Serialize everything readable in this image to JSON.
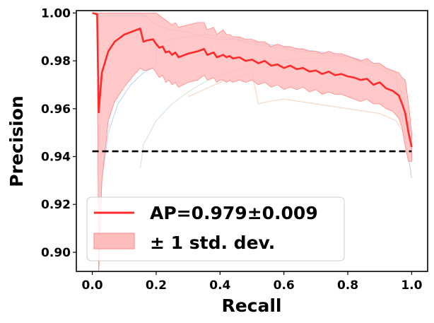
{
  "chart_data": {
    "type": "line",
    "xlabel": "Recall",
    "ylabel": "Precision",
    "xlim": [
      -0.05,
      1.05
    ],
    "ylim": [
      0.892,
      1.001
    ],
    "xticks": [
      0.0,
      0.2,
      0.4,
      0.6,
      0.8,
      1.0
    ],
    "xtick_labels": [
      "0.0",
      "0.2",
      "0.4",
      "0.6",
      "0.8",
      "1.0"
    ],
    "yticks": [
      0.9,
      0.92,
      0.94,
      0.96,
      0.98,
      1.0
    ],
    "ytick_labels": [
      "0.90",
      "0.92",
      "0.94",
      "0.96",
      "0.98",
      "1.00"
    ],
    "grid": false,
    "legend_position": "lower-left",
    "mean_curve": {
      "name": "AP=0.979±0.009",
      "color": "#ff2a2a",
      "x": [
        0.0,
        0.015,
        0.02,
        0.03,
        0.05,
        0.07,
        0.1,
        0.13,
        0.15,
        0.16,
        0.17,
        0.19,
        0.2,
        0.21,
        0.22,
        0.23,
        0.24,
        0.25,
        0.26,
        0.27,
        0.3,
        0.33,
        0.35,
        0.36,
        0.38,
        0.39,
        0.4,
        0.41,
        0.42,
        0.43,
        0.44,
        0.46,
        0.48,
        0.5,
        0.52,
        0.54,
        0.56,
        0.58,
        0.6,
        0.62,
        0.64,
        0.66,
        0.68,
        0.7,
        0.72,
        0.74,
        0.76,
        0.78,
        0.8,
        0.82,
        0.84,
        0.86,
        0.88,
        0.9,
        0.92,
        0.94,
        0.96,
        0.97,
        0.98,
        0.99,
        1.0
      ],
      "y": [
        1.0,
        0.9995,
        0.9585,
        0.975,
        0.984,
        0.988,
        0.991,
        0.9925,
        0.9935,
        0.988,
        0.9885,
        0.989,
        0.987,
        0.9855,
        0.986,
        0.9835,
        0.984,
        0.9825,
        0.9835,
        0.9815,
        0.983,
        0.984,
        0.985,
        0.9825,
        0.9835,
        0.9815,
        0.982,
        0.9825,
        0.9815,
        0.982,
        0.981,
        0.9815,
        0.98,
        0.9805,
        0.979,
        0.98,
        0.978,
        0.9785,
        0.977,
        0.978,
        0.9765,
        0.977,
        0.9755,
        0.976,
        0.9745,
        0.9755,
        0.974,
        0.9745,
        0.9735,
        0.973,
        0.972,
        0.9725,
        0.97,
        0.971,
        0.9685,
        0.9675,
        0.9655,
        0.962,
        0.958,
        0.95,
        0.944
      ]
    },
    "std_band": {
      "name": "± 1 std. dev.",
      "color": "#ffbcbc",
      "edge_color": "#ff8888",
      "x": [
        0.0,
        0.015,
        0.02,
        0.03,
        0.05,
        0.07,
        0.1,
        0.13,
        0.15,
        0.16,
        0.17,
        0.19,
        0.2,
        0.21,
        0.22,
        0.23,
        0.24,
        0.25,
        0.26,
        0.27,
        0.3,
        0.33,
        0.35,
        0.36,
        0.38,
        0.39,
        0.4,
        0.41,
        0.42,
        0.43,
        0.44,
        0.46,
        0.48,
        0.5,
        0.52,
        0.54,
        0.56,
        0.58,
        0.6,
        0.62,
        0.64,
        0.66,
        0.68,
        0.7,
        0.72,
        0.74,
        0.76,
        0.78,
        0.8,
        0.82,
        0.84,
        0.86,
        0.88,
        0.9,
        0.92,
        0.94,
        0.96,
        0.97,
        0.98,
        0.99,
        1.0
      ],
      "upper": [
        1.0,
        1.0,
        1.0,
        1.0,
        1.0,
        1.0,
        1.0,
        1.0,
        1.0,
        1.0,
        1.0,
        1.0,
        1.0,
        0.999,
        0.998,
        0.997,
        0.996,
        0.995,
        0.996,
        0.994,
        0.995,
        0.996,
        0.996,
        0.993,
        0.994,
        0.991,
        0.992,
        0.993,
        0.991,
        0.991,
        0.99,
        0.99,
        0.989,
        0.989,
        0.988,
        0.988,
        0.986,
        0.987,
        0.986,
        0.986,
        0.985,
        0.985,
        0.984,
        0.984,
        0.983,
        0.984,
        0.983,
        0.983,
        0.982,
        0.981,
        0.98,
        0.981,
        0.979,
        0.979,
        0.977,
        0.976,
        0.975,
        0.973,
        0.972,
        0.962,
        0.95
      ],
      "lower": [
        1.0,
        0.999,
        0.89,
        0.93,
        0.955,
        0.963,
        0.969,
        0.974,
        0.977,
        0.976,
        0.976,
        0.977,
        0.975,
        0.973,
        0.974,
        0.971,
        0.972,
        0.97,
        0.971,
        0.969,
        0.971,
        0.972,
        0.974,
        0.972,
        0.973,
        0.971,
        0.972,
        0.972,
        0.971,
        0.972,
        0.971,
        0.972,
        0.971,
        0.972,
        0.97,
        0.971,
        0.969,
        0.97,
        0.968,
        0.969,
        0.968,
        0.969,
        0.967,
        0.968,
        0.966,
        0.967,
        0.966,
        0.966,
        0.965,
        0.964,
        0.963,
        0.964,
        0.962,
        0.962,
        0.96,
        0.959,
        0.956,
        0.952,
        0.944,
        0.938,
        0.938
      ]
    },
    "baseline": {
      "y": 0.9422,
      "color": "#000000",
      "style": "dashed"
    },
    "faint_curves": [
      {
        "color": "#a8c8e8",
        "x": [
          0.02,
          0.03,
          0.05,
          0.08,
          0.12,
          0.16,
          0.2,
          0.2,
          0.25,
          0.3,
          0.35,
          0.4,
          0.45,
          0.5,
          0.55,
          0.6,
          0.65,
          0.7,
          0.75,
          0.8,
          0.85,
          0.9,
          0.95,
          0.99,
          1.0
        ],
        "y": [
          0.9,
          0.93,
          0.95,
          0.962,
          0.97,
          0.975,
          0.978,
          0.987,
          0.989,
          0.99,
          0.991,
          0.99,
          0.989,
          0.988,
          0.987,
          0.986,
          0.985,
          0.984,
          0.983,
          0.982,
          0.979,
          0.977,
          0.973,
          0.94,
          0.931
        ]
      },
      {
        "color": "#c9a8e0",
        "x": [
          0.05,
          0.1,
          0.15,
          0.2,
          0.25,
          0.3,
          0.35,
          0.4,
          0.45,
          0.5,
          0.55,
          0.6,
          0.65,
          0.7,
          0.75,
          0.8,
          0.85,
          0.9,
          0.95,
          1.0
        ],
        "y": [
          1.0,
          1.0,
          1.0,
          0.995,
          0.993,
          0.992,
          0.99,
          0.989,
          0.989,
          0.987,
          0.986,
          0.985,
          0.984,
          0.983,
          0.982,
          0.982,
          0.98,
          0.978,
          0.975,
          0.95
        ]
      },
      {
        "color": "#f4c8a8",
        "x": [
          0.3,
          0.35,
          0.4,
          0.45,
          0.5,
          0.52,
          0.55,
          0.6,
          0.65,
          0.7,
          0.75,
          0.8,
          0.85,
          0.9,
          0.95,
          1.0
        ],
        "y": [
          0.965,
          0.968,
          0.971,
          0.973,
          0.975,
          0.962,
          0.963,
          0.964,
          0.963,
          0.962,
          0.961,
          0.96,
          0.959,
          0.958,
          0.955,
          0.945
        ]
      },
      {
        "color": "#bfe0c4",
        "x": [
          0.15,
          0.16,
          0.2,
          0.25,
          0.3,
          0.35,
          0.4,
          0.45,
          0.5,
          0.55,
          0.6,
          0.65,
          0.7,
          0.75,
          0.8
        ],
        "y": [
          0.935,
          0.945,
          0.955,
          0.962,
          0.967,
          0.971,
          0.974,
          0.976,
          0.978,
          0.979,
          0.98,
          0.981,
          0.981,
          0.981,
          0.98
        ]
      },
      {
        "color": "#e8e8b0",
        "x": [
          0.6,
          0.65,
          0.7,
          0.75,
          0.8,
          0.85,
          0.9,
          0.95,
          1.0
        ],
        "y": [
          0.985,
          0.984,
          0.983,
          0.982,
          0.981,
          0.98,
          0.978,
          0.974,
          0.955
        ]
      }
    ],
    "legend": [
      {
        "label": "AP=0.979±0.009",
        "kind": "line",
        "color": "#ff2a2a"
      },
      {
        "label": "± 1 std. dev.",
        "kind": "patch",
        "color": "#ffbcbc"
      }
    ]
  }
}
